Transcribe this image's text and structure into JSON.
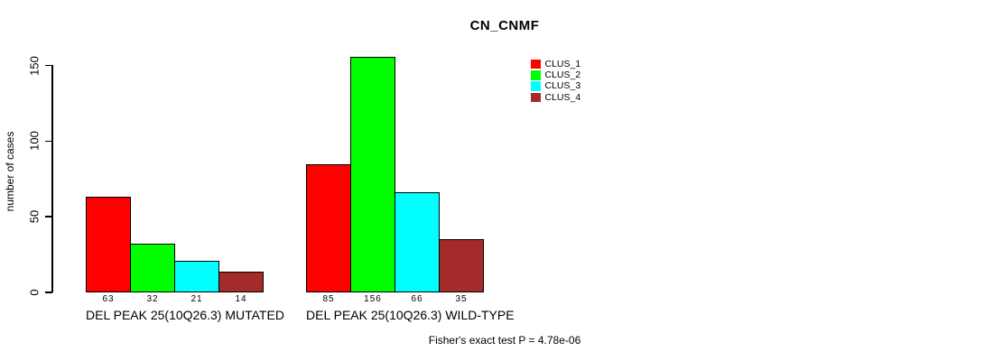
{
  "chart_data": {
    "type": "bar",
    "title": "CN_CNMF",
    "ylabel": "number of cases",
    "xlabel": "",
    "ylim": [
      0,
      150
    ],
    "yticks": [
      0,
      50,
      100,
      150
    ],
    "grid": false,
    "legend_position": "top-right",
    "bar_outline_color": "#000000",
    "categories": [
      "DEL PEAK 25(10Q26.3) MUTATED",
      "DEL PEAK 25(10Q26.3) WILD-TYPE"
    ],
    "series": [
      {
        "name": "CLUS_1",
        "color": "#ff0000",
        "values": [
          63,
          85
        ]
      },
      {
        "name": "CLUS_2",
        "color": "#00ff00",
        "values": [
          32,
          156
        ]
      },
      {
        "name": "CLUS_3",
        "color": "#00ffff",
        "values": [
          21,
          66
        ]
      },
      {
        "name": "CLUS_4",
        "color": "#a52a2a",
        "values": [
          14,
          35
        ]
      }
    ],
    "bar_value_labels": [
      [
        63,
        32,
        21,
        14
      ],
      [
        85,
        156,
        66,
        35
      ]
    ],
    "annotation": "Fisher's exact test P = 4.78e-06"
  }
}
